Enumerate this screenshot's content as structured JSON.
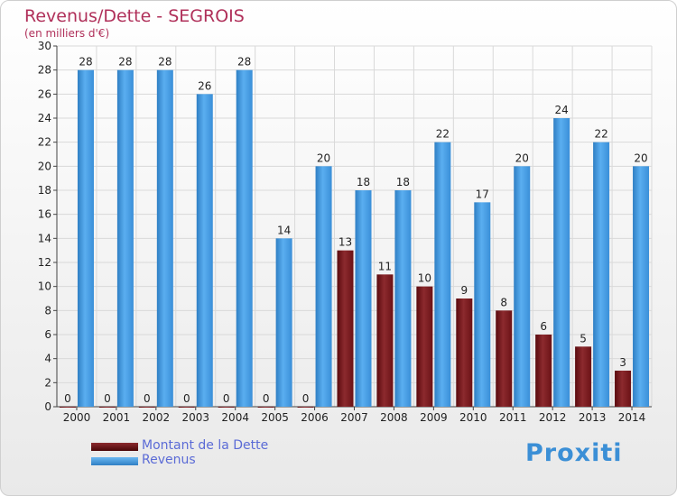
{
  "header": {
    "title": "Revenus/Dette - SEGROIS",
    "subtitle": "(en milliers d'€)"
  },
  "legend": [
    {
      "label": "Montant de la Dette",
      "color": "#6b0f14"
    },
    {
      "label": "Revenus",
      "color": "#3c93dd"
    }
  ],
  "logo": {
    "text": "Proxiti"
  },
  "colors": {
    "dette": "#7a1a1e",
    "revenus": "#4aa0e6",
    "grid": "#d9d9d9"
  },
  "chart_data": {
    "type": "bar",
    "categories": [
      "2000",
      "2001",
      "2002",
      "2003",
      "2004",
      "2005",
      "2006",
      "2007",
      "2008",
      "2009",
      "2010",
      "2011",
      "2012",
      "2013",
      "2014"
    ],
    "series": [
      {
        "name": "Montant de la Dette",
        "values": [
          0,
          0,
          0,
          0,
          0,
          0,
          0,
          13,
          11,
          10,
          9,
          8,
          6,
          5,
          3
        ]
      },
      {
        "name": "Revenus",
        "values": [
          28,
          28,
          28,
          26,
          28,
          14,
          20,
          18,
          18,
          22,
          17,
          20,
          24,
          22,
          20
        ]
      }
    ],
    "title": "Revenus/Dette - SEGROIS",
    "ylabel": "(en milliers d'€)",
    "ylim": [
      0,
      30
    ],
    "yticks": [
      0,
      2,
      4,
      6,
      8,
      10,
      12,
      14,
      16,
      18,
      20,
      22,
      24,
      26,
      28,
      30
    ],
    "grid": true,
    "legend_position": "bottom-left"
  }
}
